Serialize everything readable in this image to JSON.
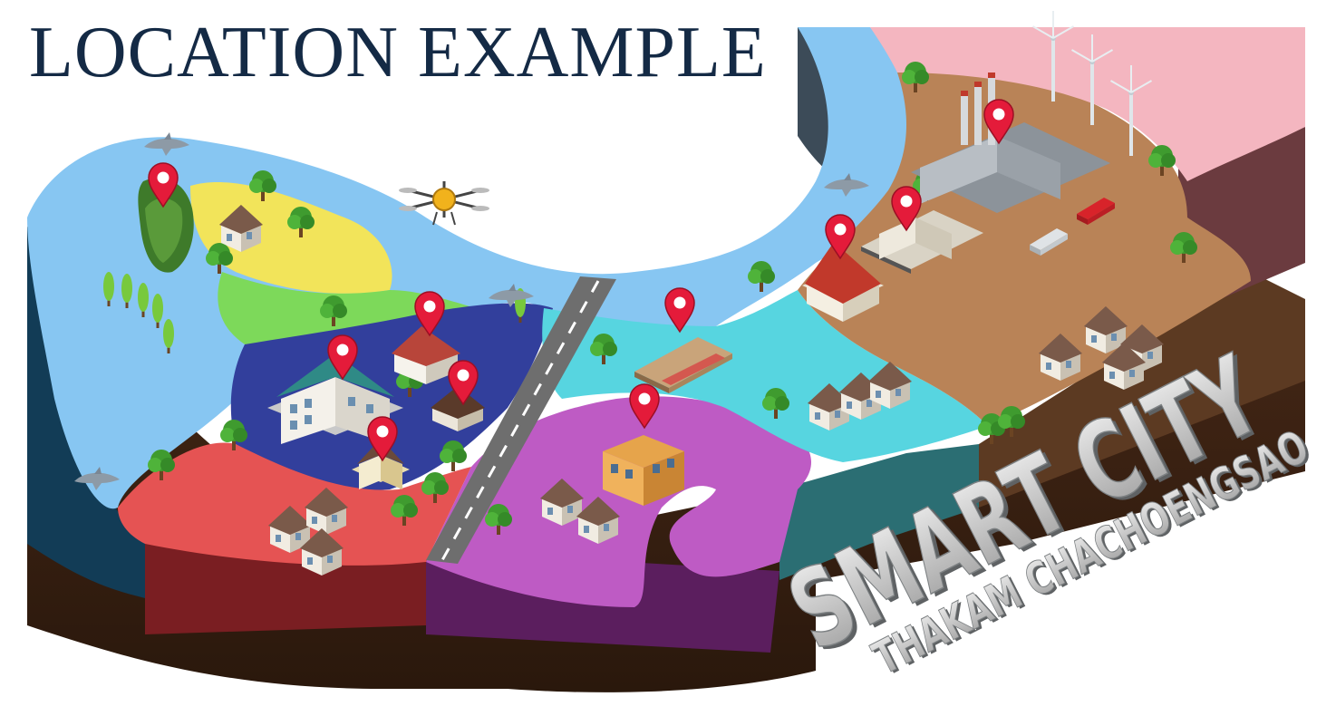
{
  "title": "LOCATION EXAMPLE",
  "slogan": {
    "main": "SMART CITY",
    "sub": "THAKAM CHACHOENGSAO"
  },
  "colors": {
    "title": "#142a45",
    "river": "#87c6f2",
    "zone_yellow": "#f2e45a",
    "zone_green": "#7dd95a",
    "zone_blue": "#323f9c",
    "zone_red": "#e55353",
    "zone_purple": "#be5bc4",
    "zone_cyan": "#57d5e0",
    "zone_brown": "#b98357",
    "zone_pink": "#f4b6c0",
    "pin": "#e41b3a",
    "soil": "#3a2214"
  },
  "icons": [
    "map-pin-icon",
    "drone-icon",
    "dolphin-icon",
    "tree-icon",
    "house-icon",
    "school-building-icon",
    "factory-icon",
    "wind-turbine-icon",
    "temple-icon",
    "park-icon",
    "shop-building-icon",
    "car-icon",
    "road-icon"
  ],
  "pins": [
    {
      "name": "pin-forest-island"
    },
    {
      "name": "pin-residence-blue-zone"
    },
    {
      "name": "pin-school"
    },
    {
      "name": "pin-villa"
    },
    {
      "name": "pin-heritage-house"
    },
    {
      "name": "pin-park-plaza"
    },
    {
      "name": "pin-shophouse"
    },
    {
      "name": "pin-temple"
    },
    {
      "name": "pin-government-building"
    },
    {
      "name": "pin-power-plant"
    }
  ]
}
